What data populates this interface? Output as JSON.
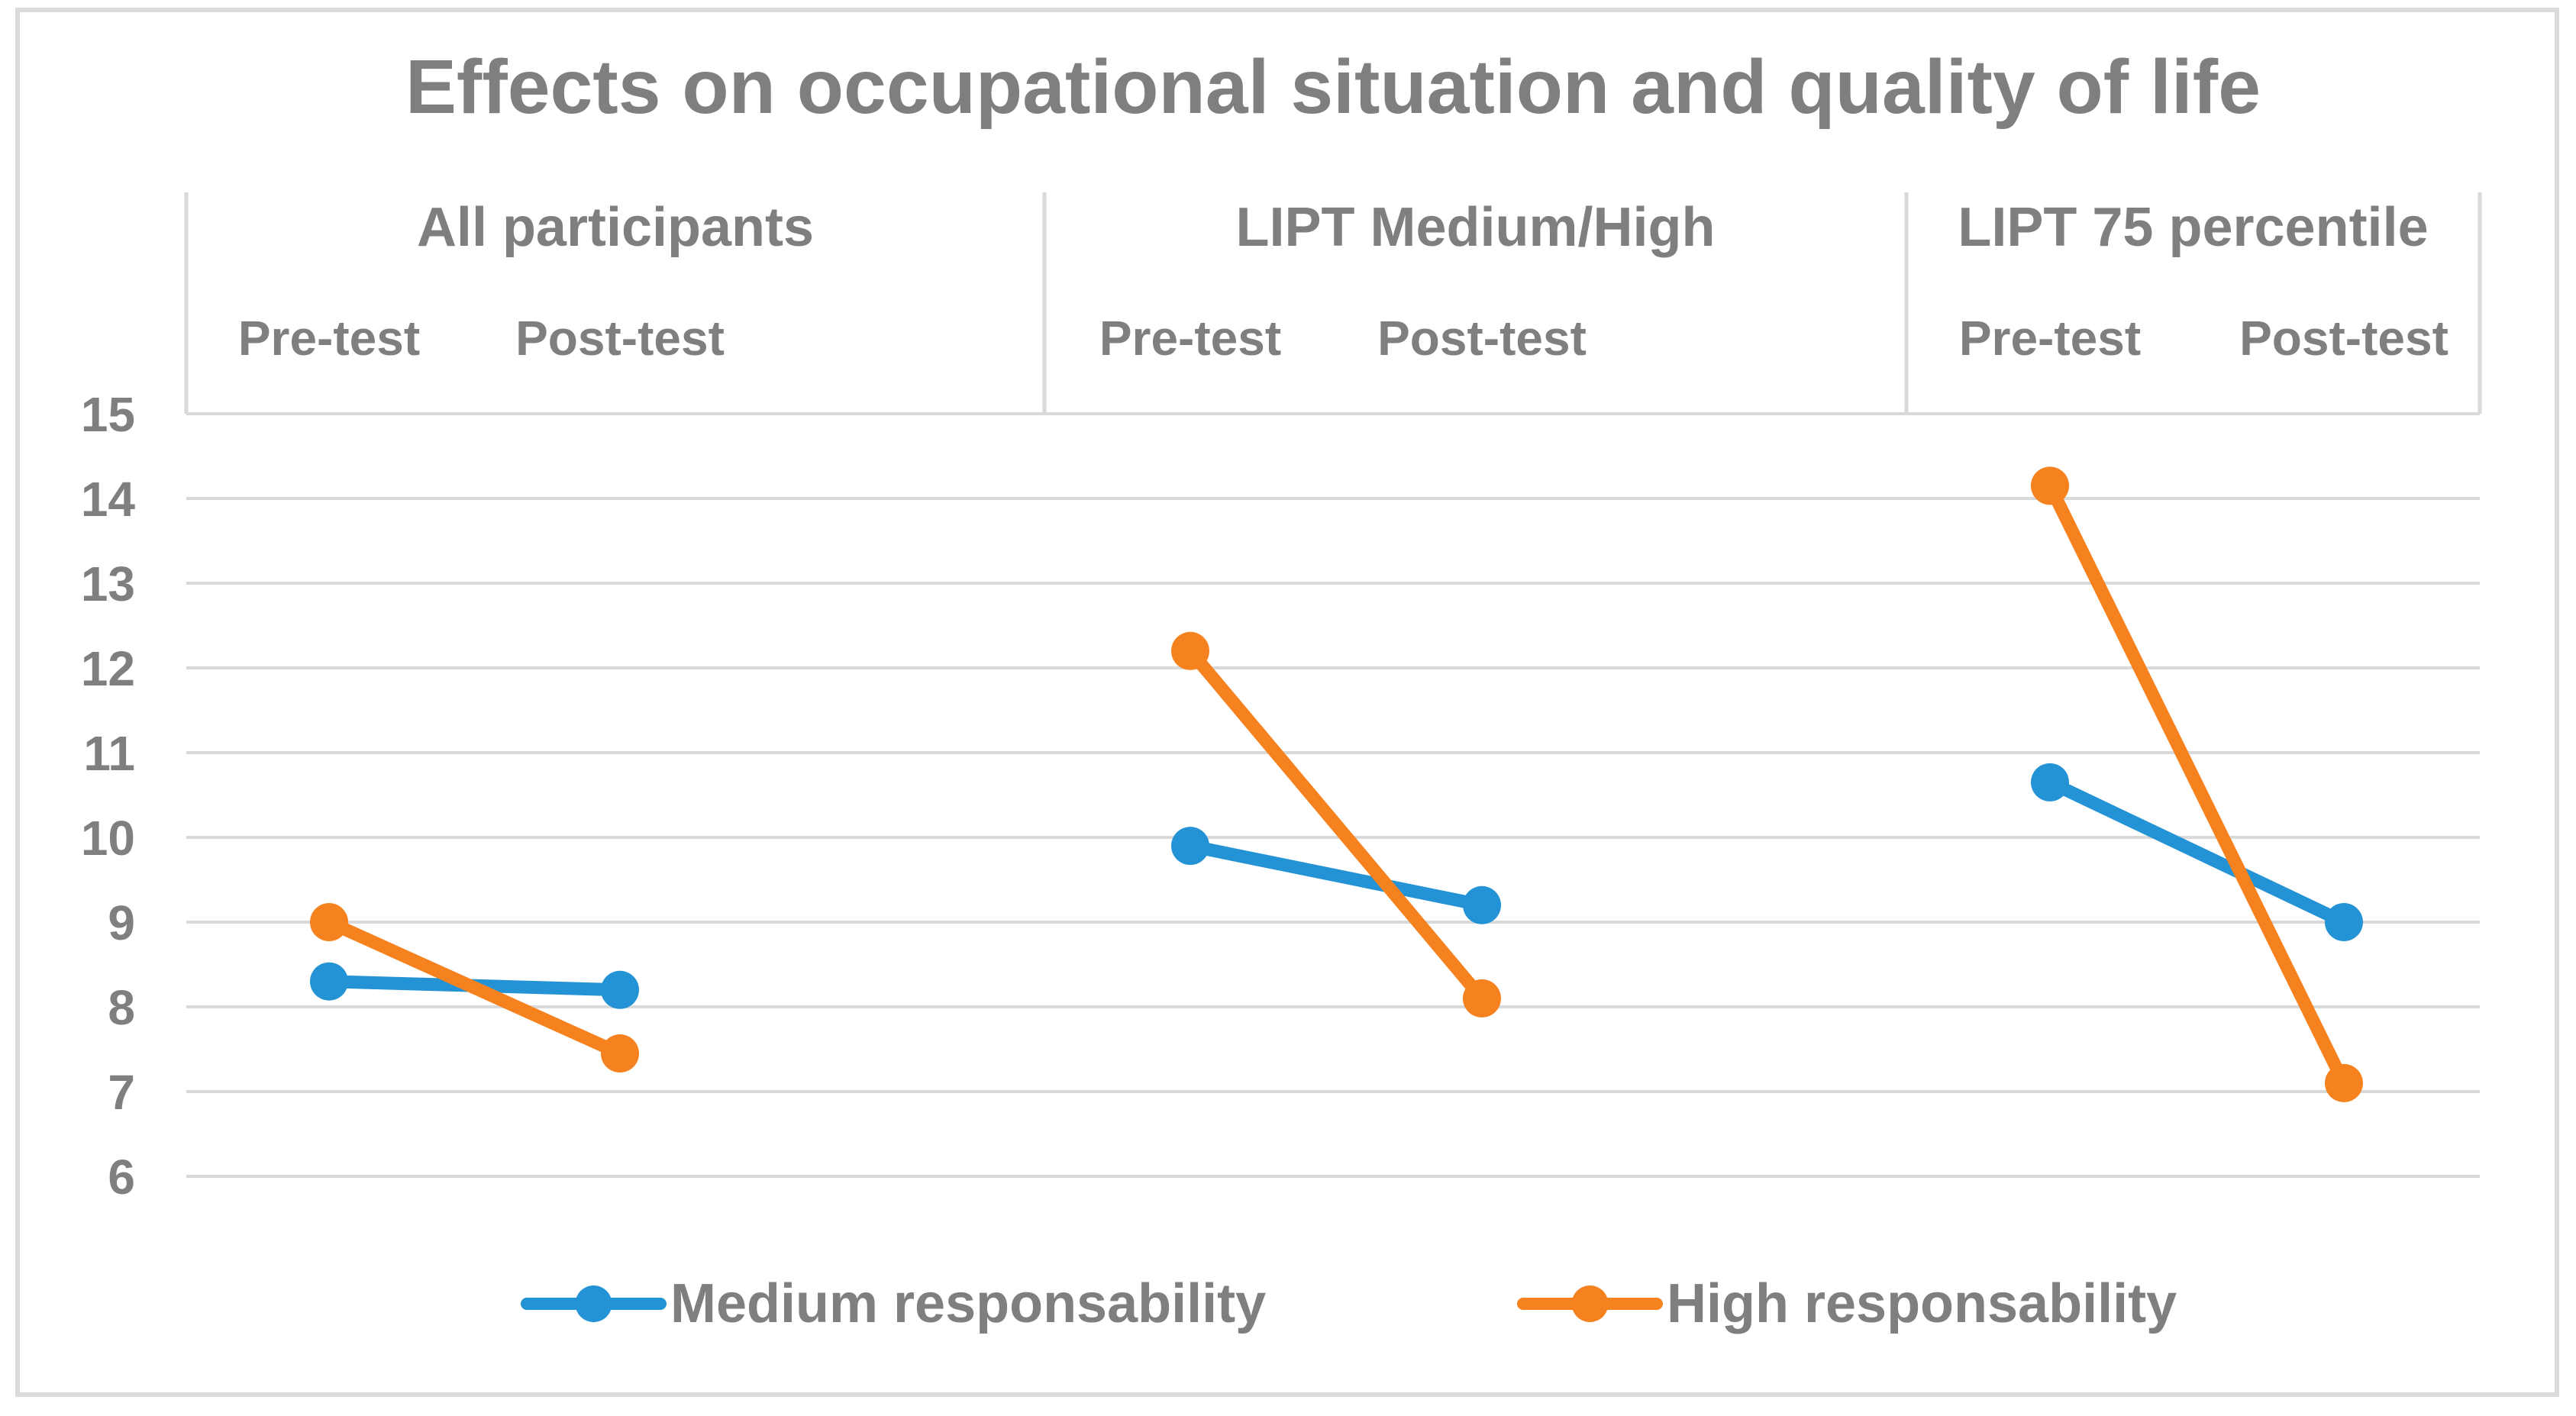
{
  "figure": {
    "title": "Effects on occupational situation and quality of life"
  },
  "chart_data": {
    "type": "line",
    "title": "Effects on occupational situation and quality of life",
    "grid": "horizontal",
    "legend_position": "bottom",
    "y_axis": {
      "min": 6,
      "max": 15,
      "step": 1,
      "tick_labels": [
        "15",
        "14",
        "13",
        "12",
        "11",
        "10",
        "9",
        "8",
        "7",
        "6"
      ]
    },
    "panels": [
      {
        "label": "All participants",
        "x_ticks": [
          "Pre-test",
          "Post-test"
        ]
      },
      {
        "label": "LIPT Medium/High",
        "x_ticks": [
          "Pre-test",
          "Post-test"
        ]
      },
      {
        "label": "LIPT 75 percentile",
        "x_ticks": [
          "Pre-test",
          "Post-test"
        ]
      }
    ],
    "series": [
      {
        "name": "Medium responsability",
        "color": "#2493D6",
        "values": [
          [
            8.3,
            8.2
          ],
          [
            9.9,
            9.2
          ],
          [
            10.65,
            9.0
          ]
        ]
      },
      {
        "name": "High responsability",
        "color": "#F5821F",
        "values": [
          [
            9.0,
            7.45
          ],
          [
            12.2,
            8.1
          ],
          [
            14.15,
            7.1
          ]
        ]
      }
    ]
  },
  "colors": {
    "gridline": "#D9D9D9",
    "divider": "#D9D9D9",
    "outer_border": "#DBDBDB",
    "text": "#7F7F7F",
    "background": "#FFFFFF"
  }
}
